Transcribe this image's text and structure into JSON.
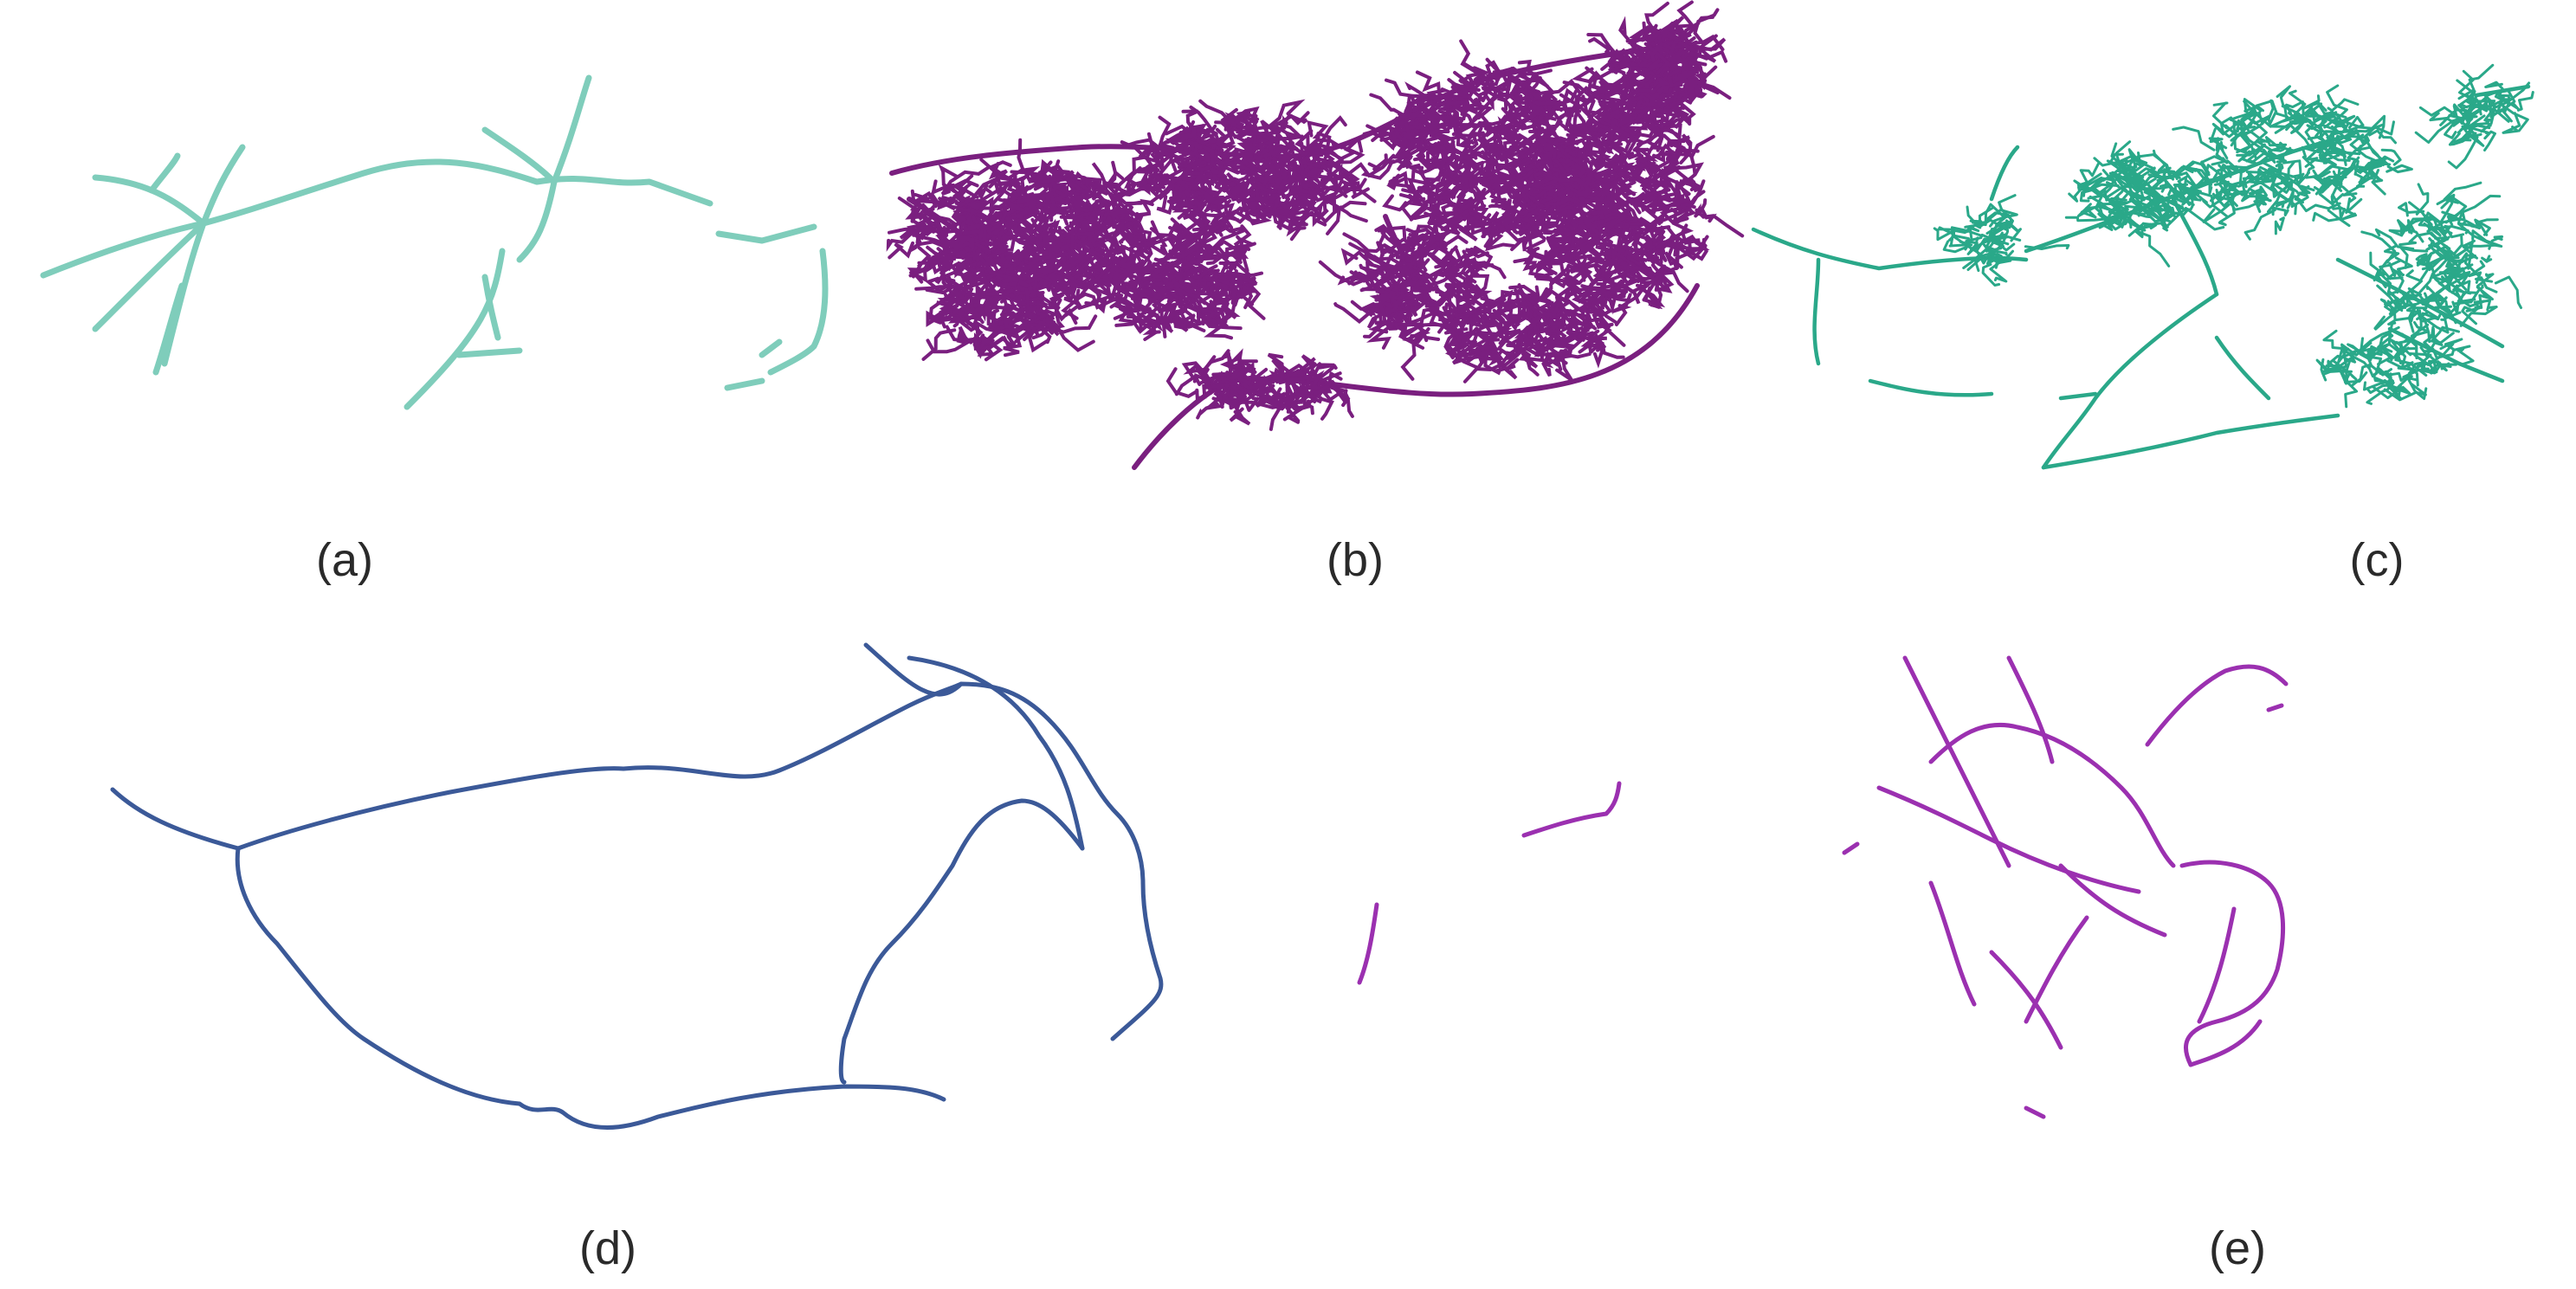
{
  "panels": [
    {
      "id": "a",
      "caption": "(a)",
      "color": "#7fcdbb",
      "style": "sparse-roads"
    },
    {
      "id": "b",
      "caption": "(b)",
      "color": "#7a1f7f",
      "style": "dense-network"
    },
    {
      "id": "c",
      "caption": "(c)",
      "color": "#2aa889",
      "style": "medium-network"
    },
    {
      "id": "d",
      "caption": "(d)",
      "color": "#3b5998",
      "style": "loop-routes"
    },
    {
      "id": "e",
      "caption": "(e)",
      "color": "#9b30b0",
      "style": "fragmented-network"
    }
  ],
  "background": "#ffffff"
}
